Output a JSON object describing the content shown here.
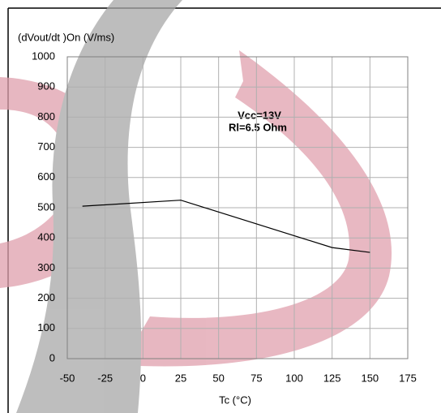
{
  "chart_data": {
    "type": "line",
    "y_label": "(dVout/dt )On (V/ms)",
    "x_label": "Tc (°C)",
    "annotations": [
      "Vcc=13V",
      "Rl=6.5 Ohm"
    ],
    "x": [
      -40,
      25,
      125,
      150
    ],
    "series": [
      {
        "color": "#000000",
        "values": [
          505,
          525,
          368,
          352
        ]
      }
    ],
    "xlim": [
      -50,
      175
    ],
    "xticks": [
      -50,
      -25,
      0,
      25,
      50,
      75,
      100,
      125,
      150,
      175
    ],
    "ylim": [
      0,
      1000
    ],
    "yticks": [
      0,
      100,
      200,
      300,
      400,
      500,
      600,
      700,
      800,
      900,
      1000
    ],
    "grid": true
  }
}
